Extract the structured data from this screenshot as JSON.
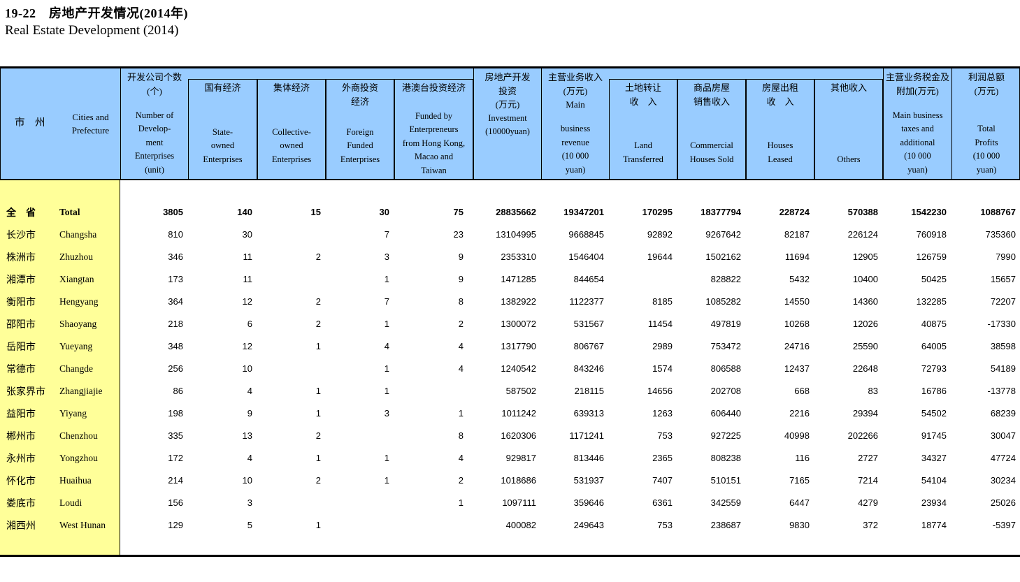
{
  "page": {
    "title_zh": "19-22　房地产开发情况(2014年)",
    "title_en": "Real Estate Development  (2014)"
  },
  "colors": {
    "header_bg": "#99CCFF",
    "stub_bg": "#FFFF99",
    "border": "#000000"
  },
  "table": {
    "stub_header": {
      "zh": "市　州",
      "en": [
        "Cities and",
        "Prefecture"
      ]
    },
    "columns": [
      {
        "key": "num-dev",
        "boxed": false,
        "sep": false,
        "gap": true,
        "zh": [
          "开发公司个数",
          "(个)"
        ],
        "en": [
          "Number of",
          "Develop-",
          "ment",
          "Enterprises",
          "(unit)"
        ]
      },
      {
        "key": "state-owned",
        "boxed": true,
        "zh": [
          "国有经济"
        ],
        "en": [
          "State-",
          "owned",
          "Enterprises"
        ]
      },
      {
        "key": "collective",
        "boxed": true,
        "zh": [
          "集体经济"
        ],
        "en": [
          "Collective-",
          "owned",
          "Enterprises"
        ]
      },
      {
        "key": "foreign-funded",
        "boxed": true,
        "zh": [
          "外商投资",
          "经济"
        ],
        "en": [
          "Foreign",
          "Funded",
          "Enterprises"
        ]
      },
      {
        "key": "hkmt",
        "boxed": true,
        "zh": [
          "港澳台投资经济"
        ],
        "en": [
          "Funded by",
          "Enterpreneurs",
          "from  Hong Kong,",
          "Macao and",
          "Taiwan"
        ]
      },
      {
        "key": "investment",
        "boxed": false,
        "sep": true,
        "gap": false,
        "zh": [
          "房地产开发",
          "投资",
          "(万元)"
        ],
        "en": [
          "Investment",
          "(10000yuan)"
        ]
      },
      {
        "key": "main-revenue",
        "boxed": false,
        "sep": true,
        "gap": true,
        "zh": [
          "主营业务收入",
          "(万元)",
          "Main"
        ],
        "en": [
          "business",
          "revenue",
          "(10 000",
          "yuan)"
        ]
      },
      {
        "key": "land-transferred",
        "boxed": true,
        "zh": [
          "土地转让",
          "收　入"
        ],
        "en": [
          "Land",
          "Transferred"
        ]
      },
      {
        "key": "commercial-houses-sold",
        "boxed": true,
        "zh": [
          "商品房屋",
          "销售收入"
        ],
        "en": [
          "Commercial",
          "Houses Sold"
        ]
      },
      {
        "key": "houses-leased",
        "boxed": true,
        "zh": [
          "房屋出租",
          "收　入"
        ],
        "en": [
          "Houses",
          "Leased"
        ]
      },
      {
        "key": "others",
        "boxed": true,
        "zh": [
          "其他收入"
        ],
        "en": [
          "Others"
        ]
      },
      {
        "key": "taxes-additional",
        "boxed": false,
        "sep": true,
        "gap": true,
        "zh": [
          "主营业务税金及",
          "附加(万元)"
        ],
        "en": [
          "Main business",
          "taxes and",
          "additional",
          "(10 000",
          "yuan)"
        ]
      },
      {
        "key": "total-profits",
        "boxed": false,
        "sep": true,
        "gap": true,
        "zh": [
          "利润总额",
          "(万元)"
        ],
        "en": [
          "Total",
          "Profits",
          "(10 000",
          "yuan)"
        ]
      }
    ],
    "rows": [
      {
        "region_zh": "全　省",
        "region_en": "Total",
        "bold": true,
        "values": [
          "3805",
          "140",
          "15",
          "30",
          "75",
          "28835662",
          "19347201",
          "170295",
          "18377794",
          "228724",
          "570388",
          "1542230",
          "1088767"
        ]
      },
      {
        "region_zh": "长沙市",
        "region_en": "Changsha",
        "bold": false,
        "values": [
          "810",
          "30",
          "",
          "7",
          "23",
          "13104995",
          "9668845",
          "92892",
          "9267642",
          "82187",
          "226124",
          "760918",
          "735360"
        ]
      },
      {
        "region_zh": "株洲市",
        "region_en": "Zhuzhou",
        "bold": false,
        "values": [
          "346",
          "11",
          "2",
          "3",
          "9",
          "2353310",
          "1546404",
          "19644",
          "1502162",
          "11694",
          "12905",
          "126759",
          "7990"
        ]
      },
      {
        "region_zh": "湘潭市",
        "region_en": "Xiangtan",
        "bold": false,
        "values": [
          "173",
          "11",
          "",
          "1",
          "9",
          "1471285",
          "844654",
          "",
          "828822",
          "5432",
          "10400",
          "50425",
          "15657"
        ]
      },
      {
        "region_zh": "衡阳市",
        "region_en": "Hengyang",
        "bold": false,
        "values": [
          "364",
          "12",
          "2",
          "7",
          "8",
          "1382922",
          "1122377",
          "8185",
          "1085282",
          "14550",
          "14360",
          "132285",
          "72207"
        ]
      },
      {
        "region_zh": "邵阳市",
        "region_en": "Shaoyang",
        "bold": false,
        "values": [
          "218",
          "6",
          "2",
          "1",
          "2",
          "1300072",
          "531567",
          "11454",
          "497819",
          "10268",
          "12026",
          "40875",
          "-17330"
        ]
      },
      {
        "region_zh": "岳阳市",
        "region_en": "Yueyang",
        "bold": false,
        "values": [
          "348",
          "12",
          "1",
          "4",
          "4",
          "1317790",
          "806767",
          "2989",
          "753472",
          "24716",
          "25590",
          "64005",
          "38598"
        ]
      },
      {
        "region_zh": "常德市",
        "region_en": "Changde",
        "bold": false,
        "values": [
          "256",
          "10",
          "",
          "1",
          "4",
          "1240542",
          "843246",
          "1574",
          "806588",
          "12437",
          "22648",
          "72793",
          "54189"
        ]
      },
      {
        "region_zh": "张家界市",
        "region_en": "Zhangjiajie",
        "bold": false,
        "values": [
          "86",
          "4",
          "1",
          "1",
          "",
          "587502",
          "218115",
          "14656",
          "202708",
          "668",
          "83",
          "16786",
          "-13778"
        ]
      },
      {
        "region_zh": "益阳市",
        "region_en": "Yiyang",
        "bold": false,
        "values": [
          "198",
          "9",
          "1",
          "3",
          "1",
          "1011242",
          "639313",
          "1263",
          "606440",
          "2216",
          "29394",
          "54502",
          "68239"
        ]
      },
      {
        "region_zh": "郴州市",
        "region_en": "Chenzhou",
        "bold": false,
        "values": [
          "335",
          "13",
          "2",
          "",
          "8",
          "1620306",
          "1171241",
          "753",
          "927225",
          "40998",
          "202266",
          "91745",
          "30047"
        ]
      },
      {
        "region_zh": "永州市",
        "region_en": "Yongzhou",
        "bold": false,
        "values": [
          "172",
          "4",
          "1",
          "1",
          "4",
          "929817",
          "813446",
          "2365",
          "808238",
          "116",
          "2727",
          "34327",
          "47724"
        ]
      },
      {
        "region_zh": "怀化市",
        "region_en": "Huaihua",
        "bold": false,
        "values": [
          "214",
          "10",
          "2",
          "1",
          "2",
          "1018686",
          "531937",
          "7407",
          "510151",
          "7165",
          "7214",
          "54104",
          "30234"
        ]
      },
      {
        "region_zh": "娄底市",
        "region_en": "Loudi",
        "bold": false,
        "values": [
          "156",
          "3",
          "",
          "",
          "1",
          "1097111",
          "359646",
          "6361",
          "342559",
          "6447",
          "4279",
          "23934",
          "25026"
        ]
      },
      {
        "region_zh": "湘西州",
        "region_en": "West Hunan",
        "bold": false,
        "values": [
          "129",
          "5",
          "1",
          "",
          "",
          "400082",
          "249643",
          "753",
          "238687",
          "9830",
          "372",
          "18774",
          "-5397"
        ]
      }
    ]
  }
}
